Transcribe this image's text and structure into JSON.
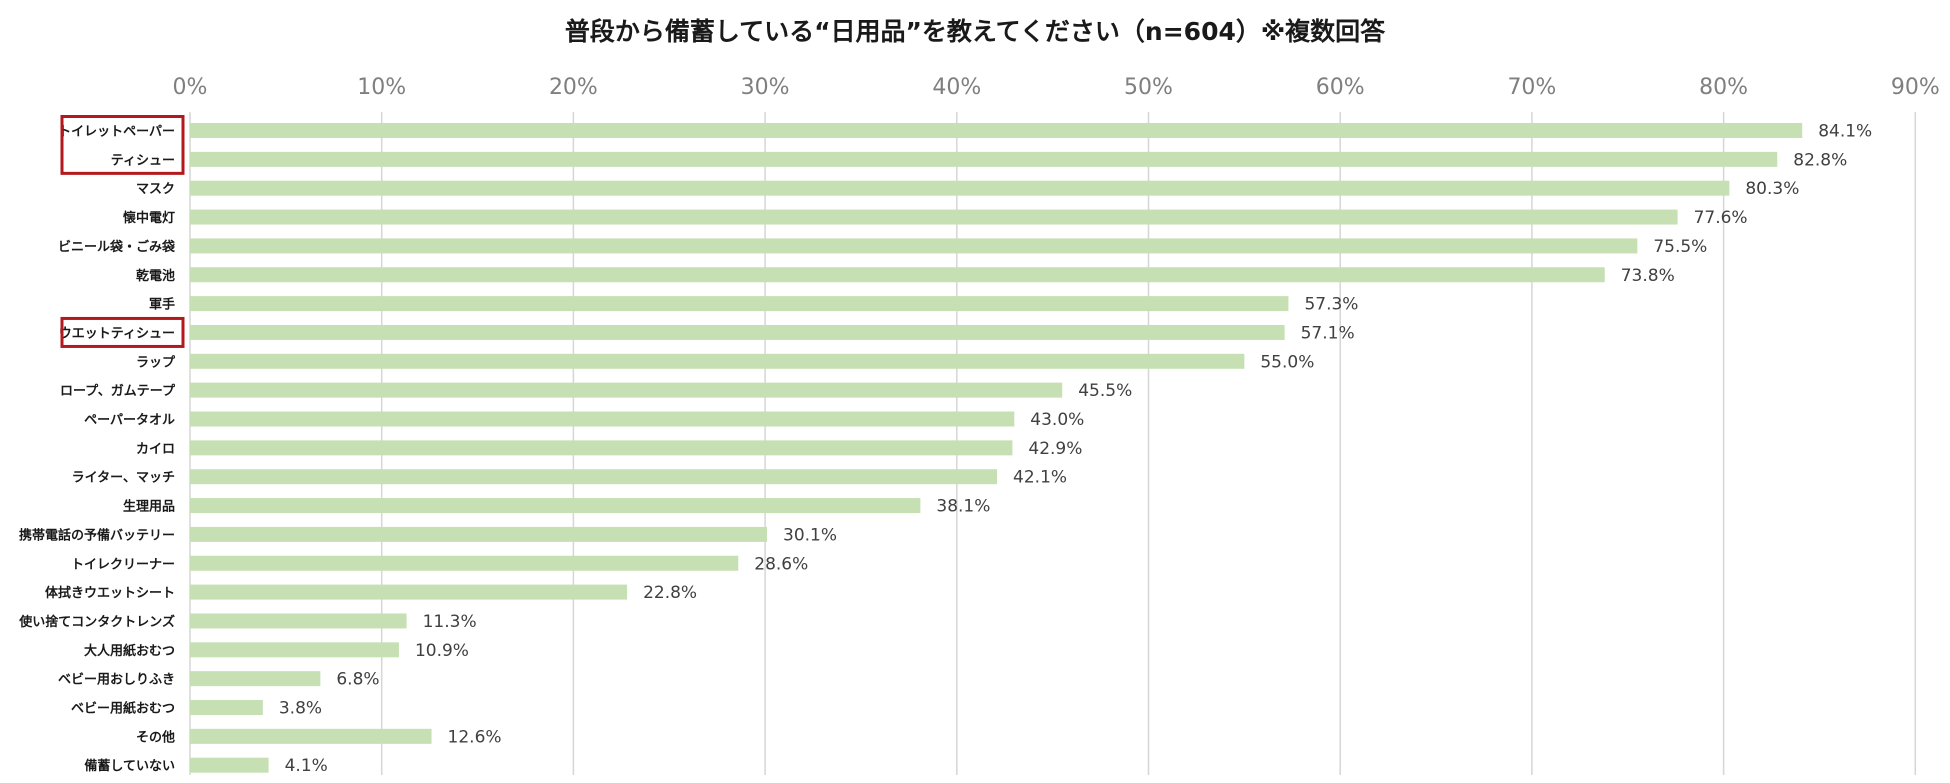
{
  "chart_data": {
    "type": "bar",
    "orientation": "horizontal",
    "title": "普段から備蓄している“日用品”を教えてください（n=604）※複数回答",
    "xlim": [
      0,
      90
    ],
    "x_ticks": [
      "0%",
      "10%",
      "20%",
      "30%",
      "40%",
      "50%",
      "60%",
      "70%",
      "80%",
      "90%"
    ],
    "grid": true,
    "bar_color": "#c6e0b4",
    "highlight_color": "#b3181d",
    "categories": [
      "トイレットペーパー",
      "ティシュー",
      "マスク",
      "懐中電灯",
      "ビニール袋・ごみ袋",
      "乾電池",
      "軍手",
      "ウエットティシュー",
      "ラップ",
      "ロープ、ガムテープ",
      "ペーパータオル",
      "カイロ",
      "ライター、マッチ",
      "生理用品",
      "携帯電話の予備バッテリー",
      "トイレクリーナー",
      "体拭きウエットシート",
      "使い捨てコンタクトレンズ",
      "大人用紙おむつ",
      "ベビー用おしりふき",
      "ベビー用紙おむつ",
      "その他",
      "備蓄していない"
    ],
    "values": [
      84.1,
      82.8,
      80.3,
      77.6,
      75.5,
      73.8,
      57.3,
      57.1,
      55.0,
      45.5,
      43.0,
      42.9,
      42.1,
      38.1,
      30.1,
      28.6,
      22.8,
      11.3,
      10.9,
      6.8,
      3.8,
      12.6,
      4.1
    ],
    "value_labels": [
      "84.1%",
      "82.8%",
      "80.3%",
      "77.6%",
      "75.5%",
      "73.8%",
      "57.3%",
      "57.1%",
      "55.0%",
      "45.5%",
      "43.0%",
      "42.9%",
      "42.1%",
      "38.1%",
      "30.1%",
      "28.6%",
      "22.8%",
      "11.3%",
      "10.9%",
      "6.8%",
      "3.8%",
      "12.6%",
      "4.1%"
    ],
    "highlighted_groups": [
      [
        "トイレットペーパー",
        "ティシュー"
      ],
      [
        "ウエットティシュー"
      ]
    ]
  }
}
